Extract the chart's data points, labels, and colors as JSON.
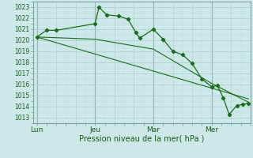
{
  "title": "",
  "xlabel": "Pression niveau de la mer( hPa )",
  "bg_color": "#cce8e8",
  "grid_major_color": "#aacccc",
  "grid_minor_color": "#bbdddd",
  "line_color": "#1a6b1a",
  "ylim": [
    1012.5,
    1023.5
  ],
  "yticks": [
    1013,
    1014,
    1015,
    1016,
    1017,
    1018,
    1019,
    1020,
    1021,
    1022,
    1023
  ],
  "xtick_labels": [
    "Lun",
    "Jeu",
    "Mar",
    "Mer"
  ],
  "xtick_positions": [
    0,
    30,
    60,
    90
  ],
  "xlim": [
    -2,
    110
  ],
  "vline_positions": [
    0,
    30,
    60,
    90
  ],
  "series1": [
    [
      0,
      1020.3
    ],
    [
      5,
      1020.9
    ],
    [
      10,
      1020.9
    ],
    [
      30,
      1021.5
    ],
    [
      32,
      1023.0
    ],
    [
      36,
      1022.3
    ],
    [
      42,
      1022.2
    ],
    [
      47,
      1021.9
    ],
    [
      51,
      1020.7
    ],
    [
      53,
      1020.2
    ],
    [
      60,
      1021.0
    ],
    [
      65,
      1020.1
    ],
    [
      70,
      1019.0
    ],
    [
      75,
      1018.7
    ],
    [
      80,
      1017.9
    ],
    [
      85,
      1016.5
    ],
    [
      90,
      1015.8
    ],
    [
      93,
      1015.9
    ],
    [
      96,
      1014.8
    ],
    [
      99,
      1013.3
    ],
    [
      103,
      1014.1
    ],
    [
      106,
      1014.2
    ],
    [
      109,
      1014.3
    ]
  ],
  "series2": [
    [
      0,
      1020.3
    ],
    [
      109,
      1014.7
    ]
  ],
  "series3": [
    [
      0,
      1020.3
    ],
    [
      30,
      1020.1
    ],
    [
      60,
      1019.2
    ],
    [
      90,
      1016.1
    ],
    [
      109,
      1014.4
    ]
  ]
}
